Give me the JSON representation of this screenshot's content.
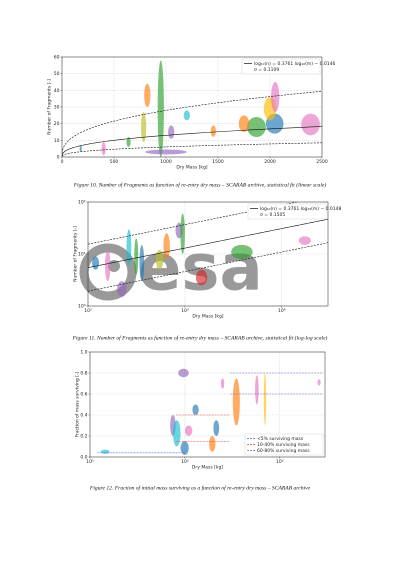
{
  "chart_data": [
    {
      "type": "bubble",
      "caption": "Figure 10. Number of Fragments as function of re-entry dry mass – SCARAB archive, statistical fit (linear scale)",
      "x_label": "Dry Mass [kg]",
      "y_label": "Number of Fragments [-]",
      "xlim": [
        0,
        2500
      ],
      "xticks": [
        0,
        500,
        1000,
        1500,
        2000,
        2500
      ],
      "ylim": [
        0,
        60
      ],
      "yticks": [
        0,
        10,
        20,
        30,
        40,
        50,
        60
      ],
      "grid": true,
      "legend": "upper right",
      "fit": {
        "label": "log₁₀(n) = 0.3761 log₁₀(m) − 0.0146",
        "sigma_label": "σ = 0.1109",
        "slope": 0.3761,
        "intercept": -0.0146,
        "sigma": 0.1109
      },
      "bubbles": [
        {
          "x": [
            920,
            980
          ],
          "y": [
            0,
            58
          ],
          "color": "#2ca02c"
        },
        {
          "x": [
            790,
            850
          ],
          "y": [
            30,
            44
          ],
          "color": "#ff7f0e"
        },
        {
          "x": [
            760,
            810
          ],
          "y": [
            9,
            27
          ],
          "color": "#bcbd22"
        },
        {
          "x": [
            1020,
            1080
          ],
          "y": [
            11,
            19
          ],
          "color": "#9467bd"
        },
        {
          "x": [
            1780,
            1960
          ],
          "y": [
            12,
            24
          ],
          "color": "#2ca02c"
        },
        {
          "x": [
            1960,
            2130
          ],
          "y": [
            14,
            26
          ],
          "color": "#1f77b4"
        },
        {
          "x": [
            2300,
            2480
          ],
          "y": [
            13,
            26
          ],
          "color": "#e377c2"
        },
        {
          "x": [
            1700,
            1800
          ],
          "y": [
            15,
            25
          ],
          "color": "#ff7f0e"
        },
        {
          "x": [
            1940,
            2060
          ],
          "y": [
            22,
            36
          ],
          "color": "#ffbf00"
        },
        {
          "x": [
            2010,
            2090
          ],
          "y": [
            27,
            45
          ],
          "color": "#e377c2"
        },
        {
          "x": [
            800,
            1200
          ],
          "y": [
            1.5,
            4.5
          ],
          "color": "#9467bd"
        },
        {
          "x": [
            380,
            420
          ],
          "y": [
            1,
            9
          ],
          "color": "#e377c2"
        },
        {
          "x": [
            1430,
            1480
          ],
          "y": [
            12,
            19
          ],
          "color": "#ff7f0e"
        },
        {
          "x": [
            1170,
            1230
          ],
          "y": [
            22,
            28
          ],
          "color": "#17becf"
        },
        {
          "x": [
            620,
            660
          ],
          "y": [
            6,
            12
          ],
          "color": "#2ca02c"
        },
        {
          "x": [
            170,
            190
          ],
          "y": [
            3,
            7
          ],
          "color": "#1f77b4"
        }
      ]
    },
    {
      "type": "bubble",
      "caption": "Figure 11. Number of Fragments as function of re-entry dry mass – SCARAB archive, statistical fit (log-log scale)",
      "x_label": "Dry Mass [kg]",
      "y_label": "Number of Fragments [-]",
      "xlog": true,
      "ylog": true,
      "xlim": [
        100,
        30000
      ],
      "xticks": [
        {
          "value": 100,
          "label": "10²"
        },
        {
          "value": 1000,
          "label": "10³"
        },
        {
          "value": 10000,
          "label": "10⁴"
        }
      ],
      "ylim": [
        1,
        100
      ],
      "yticks": [
        {
          "value": 1,
          "label": "10⁰"
        },
        {
          "value": 10,
          "label": "10¹"
        },
        {
          "value": 100,
          "label": "10²"
        }
      ],
      "grid": true,
      "legend": "upper right",
      "watermark": "esa",
      "fit": {
        "label": "log₁₀(n) = 0.3761 log₁₀(m) − 0.0148",
        "sigma_label": "σ = 0.1505",
        "slope": 0.3761,
        "intercept": -0.0148,
        "sigma": 0.1505
      },
      "bubbles": [
        {
          "x": [
            150,
            170
          ],
          "y": [
            3,
            12
          ],
          "color": "#e377c2"
        },
        {
          "x": [
            300,
            330
          ],
          "y": [
            4,
            20
          ],
          "color": "#2ca02c"
        },
        {
          "x": [
            340,
            380
          ],
          "y": [
            3,
            15
          ],
          "color": "#1f77b4"
        },
        {
          "x": [
            600,
            700
          ],
          "y": [
            8,
            25
          ],
          "color": "#ff7f0e"
        },
        {
          "x": [
            800,
            950
          ],
          "y": [
            20,
            40
          ],
          "color": "#9467bd"
        },
        {
          "x": [
            900,
            1000
          ],
          "y": [
            10,
            60
          ],
          "color": "#2ca02c"
        },
        {
          "x": [
            1300,
            1700
          ],
          "y": [
            2.5,
            5
          ],
          "color": "#d62728"
        },
        {
          "x": [
            3000,
            5000
          ],
          "y": [
            8,
            15
          ],
          "color": "#2ca02c"
        },
        {
          "x": [
            500,
            600
          ],
          "y": [
            5,
            12
          ],
          "color": "#bcbd22"
        },
        {
          "x": [
            200,
            250
          ],
          "y": [
            1.5,
            3
          ],
          "color": "#9467bd"
        },
        {
          "x": [
            15000,
            20000
          ],
          "y": [
            15,
            22
          ],
          "color": "#e377c2"
        },
        {
          "x": [
            110,
            130
          ],
          "y": [
            5,
            9
          ],
          "color": "#1f77b4"
        },
        {
          "x": [
            250,
            280
          ],
          "y": [
            6,
            30
          ],
          "color": "#17becf"
        }
      ]
    },
    {
      "type": "bubble",
      "caption": "Figure 12. Fraction of initial mass surviving as a function of re-entry dry mass – SCARAB archive",
      "x_label": "Dry Mass [kg]",
      "y_label": "Fraction of mass surviving [-]",
      "xlog": true,
      "xlim": [
        10,
        3000
      ],
      "xticks": [
        {
          "value": 10,
          "label": "10¹"
        },
        {
          "value": 100,
          "label": "10²"
        },
        {
          "value": 1000,
          "label": "10³"
        }
      ],
      "ylim": [
        0,
        1
      ],
      "yticks": [
        {
          "value": 0,
          "label": "0.0"
        },
        0.2,
        0.4,
        0.6,
        0.8,
        {
          "value": 1,
          "label": "1.0"
        }
      ],
      "grid": true,
      "legend": "lower right",
      "thresholds": [
        {
          "name": "<5% surviving mass",
          "color": "#4a6fd8",
          "x": [
            12,
            100
          ],
          "levels": [
            0.04
          ]
        },
        {
          "name": "10-40% surviving mass",
          "color": "#e04a4a",
          "x": [
            80,
            300
          ],
          "levels": [
            0.15,
            0.4
          ]
        },
        {
          "name": "60-80% surviving mass",
          "color": "#8a5ad0",
          "x": [
            300,
            2800
          ],
          "levels": [
            0.6,
            0.8
          ]
        }
      ],
      "bubbles": [
        {
          "x": [
            85,
            110
          ],
          "y": [
            0.76,
            0.84
          ],
          "color": "#9467bd"
        },
        {
          "x": [
            70,
            80
          ],
          "y": [
            0.2,
            0.4
          ],
          "color": "#9467bd"
        },
        {
          "x": [
            75,
            90
          ],
          "y": [
            0.1,
            0.35
          ],
          "color": "#17becf"
        },
        {
          "x": [
            90,
            110
          ],
          "y": [
            0.02,
            0.15
          ],
          "color": "#1f77b4"
        },
        {
          "x": [
            100,
            120
          ],
          "y": [
            0.2,
            0.3
          ],
          "color": "#e377c2"
        },
        {
          "x": [
            180,
            210
          ],
          "y": [
            0.05,
            0.2
          ],
          "color": "#ff7f0e"
        },
        {
          "x": [
            200,
            230
          ],
          "y": [
            0.2,
            0.35
          ],
          "color": "#1f77b4"
        },
        {
          "x": [
            320,
            380
          ],
          "y": [
            0.3,
            0.75
          ],
          "color": "#ff7f0e"
        },
        {
          "x": [
            240,
            260
          ],
          "y": [
            0.65,
            0.75
          ],
          "color": "#e377c2"
        },
        {
          "x": [
            550,
            600
          ],
          "y": [
            0.5,
            0.78
          ],
          "color": "#e377c2"
        },
        {
          "x": [
            680,
            720
          ],
          "y": [
            0.3,
            0.8
          ],
          "color": "#ffbf00"
        },
        {
          "x": [
            2500,
            2700
          ],
          "y": [
            0.68,
            0.74
          ],
          "color": "#e377c2"
        },
        {
          "x": [
            13,
            16
          ],
          "y": [
            0.03,
            0.07
          ],
          "color": "#17becf"
        },
        {
          "x": [
            120,
            140
          ],
          "y": [
            0.4,
            0.5
          ],
          "color": "#1f77b4"
        }
      ]
    }
  ]
}
